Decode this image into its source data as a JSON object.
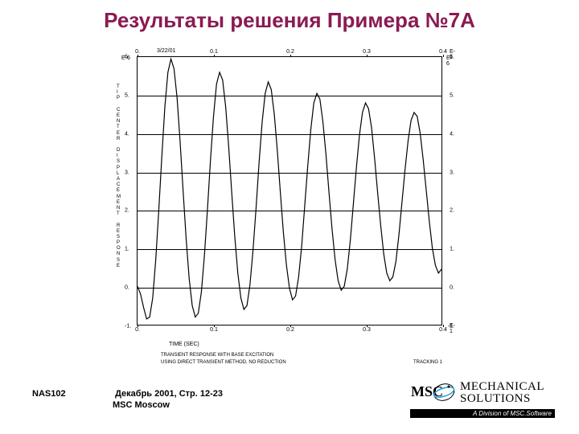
{
  "title": {
    "text": "Результаты решения Примера №7A",
    "color": "#8a1a52",
    "fontsize": 26
  },
  "chart": {
    "type": "line",
    "date": "3/22/01",
    "plot_bg": "#ffffff",
    "axis_color": "#000000",
    "grid_color": "#000000",
    "line_color": "#000000",
    "line_width": 1.2,
    "x": {
      "exp_top": "E-1",
      "exp_bot": "E-1",
      "ticks": [
        0,
        0.1,
        0.2,
        0.3,
        0.4
      ],
      "labels": [
        "0.",
        "0.1",
        "0.2",
        "0.3",
        "0.4"
      ],
      "caption": "TIME (SEC)"
    },
    "y": {
      "exp_left": "E-6",
      "exp_right": "E-6",
      "caption_letters": [
        "T",
        "I",
        "P",
        "",
        "C",
        "E",
        "N",
        "T",
        "E",
        "R",
        "",
        "D",
        "I",
        "S",
        "P",
        "L",
        "A",
        "C",
        "E",
        "M",
        "E",
        "N",
        "T",
        "",
        "R",
        "E",
        "S",
        "P",
        "O",
        "N",
        "S",
        "E"
      ],
      "ticks": [
        -1,
        0,
        1,
        2,
        3,
        4,
        5,
        6
      ],
      "labels": [
        "-1.",
        "0.",
        "1.",
        "2.",
        "3.",
        "4.",
        "5.",
        "6."
      ]
    },
    "subtitle1": "TRANSIENT RESPONSE WITH BASE EXCITATION",
    "subtitle2": "USING DIRECT TRANSIENT METHOD, NO REDUCTION",
    "tracking": "TRACKING 1",
    "series": [
      {
        "x": 0.0,
        "y": 0.0
      },
      {
        "x": 0.004,
        "y": -0.2
      },
      {
        "x": 0.008,
        "y": -0.55
      },
      {
        "x": 0.012,
        "y": -0.85
      },
      {
        "x": 0.016,
        "y": -0.8
      },
      {
        "x": 0.02,
        "y": -0.3
      },
      {
        "x": 0.024,
        "y": 0.7
      },
      {
        "x": 0.028,
        "y": 2.0
      },
      {
        "x": 0.032,
        "y": 3.4
      },
      {
        "x": 0.036,
        "y": 4.7
      },
      {
        "x": 0.04,
        "y": 5.6
      },
      {
        "x": 0.044,
        "y": 5.95
      },
      {
        "x": 0.048,
        "y": 5.7
      },
      {
        "x": 0.052,
        "y": 4.95
      },
      {
        "x": 0.056,
        "y": 3.8
      },
      {
        "x": 0.06,
        "y": 2.5
      },
      {
        "x": 0.064,
        "y": 1.25
      },
      {
        "x": 0.068,
        "y": 0.2
      },
      {
        "x": 0.072,
        "y": -0.5
      },
      {
        "x": 0.076,
        "y": -0.8
      },
      {
        "x": 0.08,
        "y": -0.7
      },
      {
        "x": 0.084,
        "y": -0.15
      },
      {
        "x": 0.088,
        "y": 0.8
      },
      {
        "x": 0.092,
        "y": 2.0
      },
      {
        "x": 0.096,
        "y": 3.3
      },
      {
        "x": 0.1,
        "y": 4.45
      },
      {
        "x": 0.104,
        "y": 5.3
      },
      {
        "x": 0.108,
        "y": 5.6
      },
      {
        "x": 0.112,
        "y": 5.4
      },
      {
        "x": 0.116,
        "y": 4.7
      },
      {
        "x": 0.12,
        "y": 3.65
      },
      {
        "x": 0.124,
        "y": 2.45
      },
      {
        "x": 0.128,
        "y": 1.3
      },
      {
        "x": 0.132,
        "y": 0.35
      },
      {
        "x": 0.136,
        "y": -0.3
      },
      {
        "x": 0.14,
        "y": -0.6
      },
      {
        "x": 0.144,
        "y": -0.5
      },
      {
        "x": 0.148,
        "y": 0.05
      },
      {
        "x": 0.152,
        "y": 0.95
      },
      {
        "x": 0.156,
        "y": 2.05
      },
      {
        "x": 0.16,
        "y": 3.25
      },
      {
        "x": 0.164,
        "y": 4.3
      },
      {
        "x": 0.168,
        "y": 5.05
      },
      {
        "x": 0.172,
        "y": 5.35
      },
      {
        "x": 0.176,
        "y": 5.15
      },
      {
        "x": 0.18,
        "y": 4.5
      },
      {
        "x": 0.184,
        "y": 3.55
      },
      {
        "x": 0.188,
        "y": 2.45
      },
      {
        "x": 0.192,
        "y": 1.4
      },
      {
        "x": 0.196,
        "y": 0.55
      },
      {
        "x": 0.2,
        "y": -0.05
      },
      {
        "x": 0.204,
        "y": -0.35
      },
      {
        "x": 0.208,
        "y": -0.25
      },
      {
        "x": 0.212,
        "y": 0.25
      },
      {
        "x": 0.216,
        "y": 1.05
      },
      {
        "x": 0.22,
        "y": 2.1
      },
      {
        "x": 0.224,
        "y": 3.15
      },
      {
        "x": 0.228,
        "y": 4.1
      },
      {
        "x": 0.232,
        "y": 4.8
      },
      {
        "x": 0.236,
        "y": 5.05
      },
      {
        "x": 0.24,
        "y": 4.9
      },
      {
        "x": 0.244,
        "y": 4.3
      },
      {
        "x": 0.248,
        "y": 3.45
      },
      {
        "x": 0.252,
        "y": 2.45
      },
      {
        "x": 0.256,
        "y": 1.5
      },
      {
        "x": 0.26,
        "y": 0.7
      },
      {
        "x": 0.264,
        "y": 0.15
      },
      {
        "x": 0.268,
        "y": -0.1
      },
      {
        "x": 0.272,
        "y": 0.0
      },
      {
        "x": 0.276,
        "y": 0.45
      },
      {
        "x": 0.28,
        "y": 1.2
      },
      {
        "x": 0.284,
        "y": 2.15
      },
      {
        "x": 0.288,
        "y": 3.1
      },
      {
        "x": 0.292,
        "y": 3.95
      },
      {
        "x": 0.296,
        "y": 4.55
      },
      {
        "x": 0.3,
        "y": 4.8
      },
      {
        "x": 0.304,
        "y": 4.65
      },
      {
        "x": 0.308,
        "y": 4.15
      },
      {
        "x": 0.312,
        "y": 3.35
      },
      {
        "x": 0.316,
        "y": 2.45
      },
      {
        "x": 0.32,
        "y": 1.6
      },
      {
        "x": 0.324,
        "y": 0.85
      },
      {
        "x": 0.328,
        "y": 0.35
      },
      {
        "x": 0.332,
        "y": 0.15
      },
      {
        "x": 0.336,
        "y": 0.25
      },
      {
        "x": 0.34,
        "y": 0.65
      },
      {
        "x": 0.344,
        "y": 1.35
      },
      {
        "x": 0.348,
        "y": 2.2
      },
      {
        "x": 0.352,
        "y": 3.05
      },
      {
        "x": 0.356,
        "y": 3.8
      },
      {
        "x": 0.36,
        "y": 4.35
      },
      {
        "x": 0.364,
        "y": 4.55
      },
      {
        "x": 0.368,
        "y": 4.45
      },
      {
        "x": 0.372,
        "y": 4.0
      },
      {
        "x": 0.376,
        "y": 3.3
      },
      {
        "x": 0.38,
        "y": 2.5
      },
      {
        "x": 0.384,
        "y": 1.7
      },
      {
        "x": 0.388,
        "y": 1.0
      },
      {
        "x": 0.392,
        "y": 0.55
      },
      {
        "x": 0.396,
        "y": 0.35
      },
      {
        "x": 0.4,
        "y": 0.45
      }
    ]
  },
  "footer": {
    "course": "NAS102",
    "page": "Декабрь 2001, Стр. 12-23",
    "org": "MSC Moscow",
    "color": "#000000"
  },
  "logo": {
    "line1": "MECHANICAL",
    "line2": "SOLUTIONS",
    "bar": "A Division of MSC.Software",
    "msc": "MSC",
    "accent": "#2aa0d8"
  }
}
